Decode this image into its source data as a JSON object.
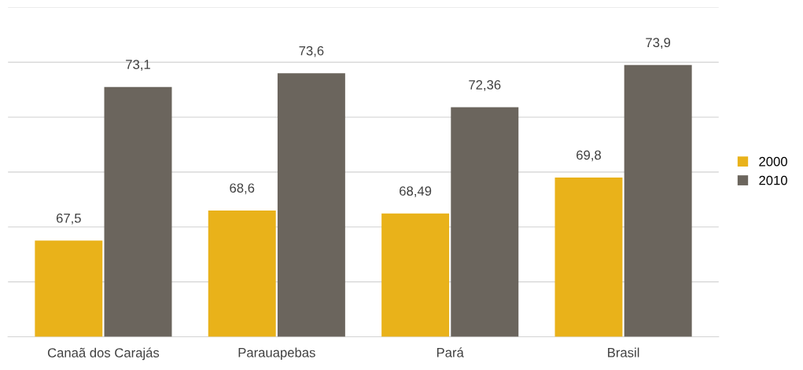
{
  "chart_data": {
    "type": "bar",
    "categories": [
      "Canaã dos Carajás",
      "Parauapebas",
      "Pará",
      "Brasil"
    ],
    "series": [
      {
        "name": "2000",
        "color": "#e9b21a",
        "values": [
          67.5,
          68.6,
          68.49,
          69.8
        ],
        "value_labels": [
          "67,5",
          "68,6",
          "68,49",
          "69,8"
        ]
      },
      {
        "name": "2010",
        "color": "#6b655d",
        "values": [
          73.1,
          73.6,
          72.36,
          73.9
        ],
        "value_labels": [
          "73,1",
          "73,6",
          "72,36",
          "73,9"
        ]
      }
    ],
    "ylim": [
      64,
      76
    ],
    "yticks": [
      {
        "value": 64,
        "label": null
      },
      {
        "value": 66,
        "label": null
      },
      {
        "value": 68,
        "label": null
      },
      {
        "value": 70,
        "label": null
      },
      {
        "value": 72,
        "label": null
      },
      {
        "value": 74,
        "label": null
      },
      {
        "value": 76,
        "label": null
      }
    ],
    "tick_labels": "x",
    "grid": "y",
    "legend": "right"
  }
}
